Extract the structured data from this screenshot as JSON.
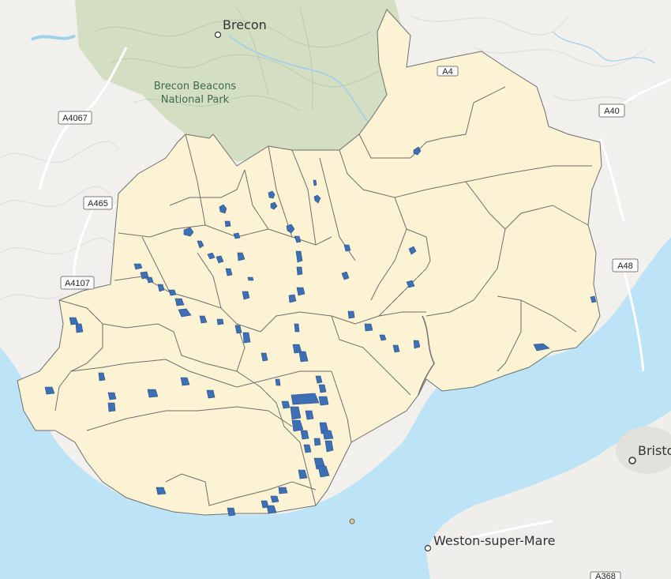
{
  "map": {
    "place_labels": [
      "Brecon",
      "Bristol",
      "Weston-super-Mare"
    ],
    "park_label": [
      "Brecon Beacons",
      "National Park"
    ],
    "road_labels": [
      "A4067",
      "A465",
      "A4107",
      "A40",
      "A48",
      "A4",
      "A368"
    ],
    "colors": {
      "sea": "#bde4f6",
      "land": "#f2f1ee",
      "park": "#cfdcbf",
      "region_fill": "#fbf3d3",
      "region_stroke": "#6e6e6e",
      "feature_fill": "#3d6fb5"
    }
  }
}
